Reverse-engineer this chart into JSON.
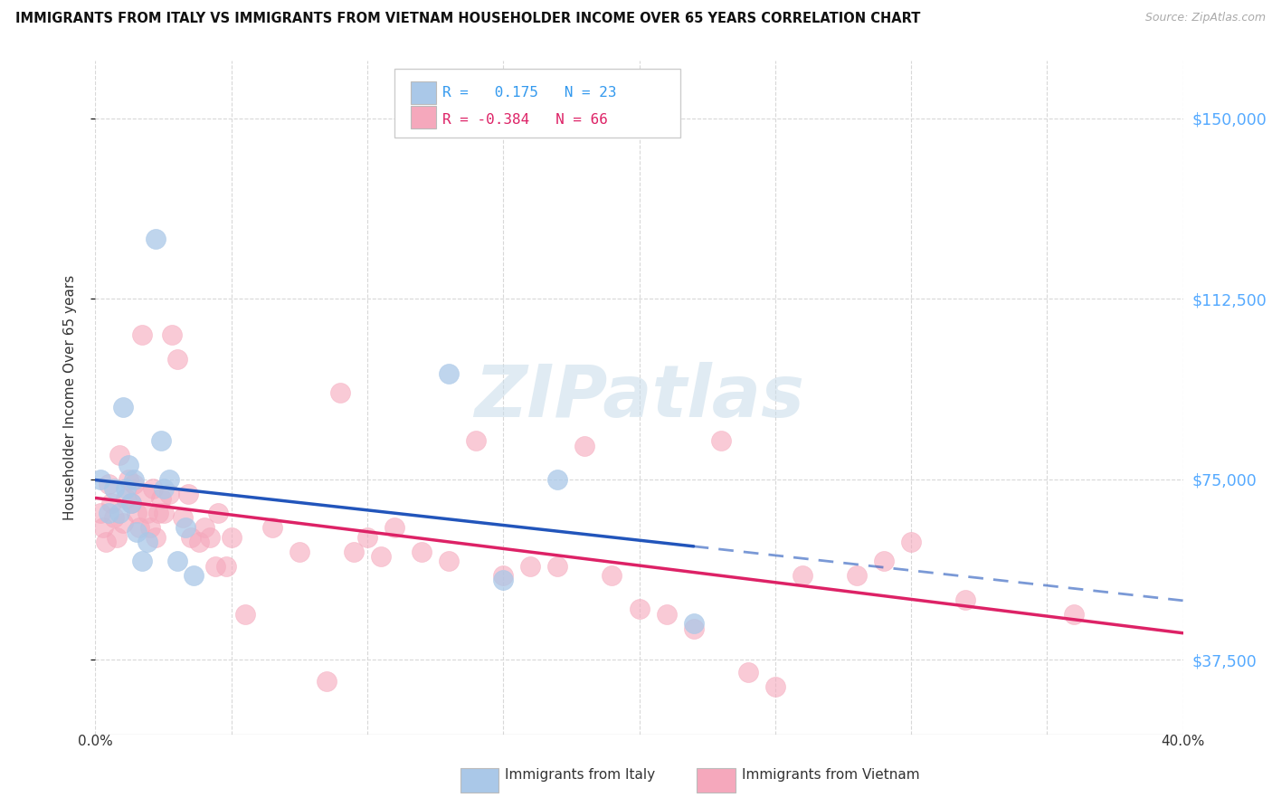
{
  "title": "IMMIGRANTS FROM ITALY VS IMMIGRANTS FROM VIETNAM HOUSEHOLDER INCOME OVER 65 YEARS CORRELATION CHART",
  "source": "Source: ZipAtlas.com",
  "ylabel": "Householder Income Over 65 years",
  "legend_italy": "Immigrants from Italy",
  "legend_vietnam": "Immigrants from Vietnam",
  "italy_R": "0.175",
  "italy_N": "23",
  "vietnam_R": "-0.384",
  "vietnam_N": "66",
  "ytick_vals": [
    37500,
    75000,
    112500,
    150000
  ],
  "ytick_labels": [
    "$37,500",
    "$75,000",
    "$112,500",
    "$150,000"
  ],
  "xlim": [
    0.0,
    0.4
  ],
  "ylim": [
    22000,
    162000
  ],
  "italy_face_color": "#aac8e8",
  "vietnam_face_color": "#f5a8bc",
  "italy_line_color": "#2255bb",
  "vietnam_line_color": "#dd2266",
  "watermark": "ZIPatlas",
  "background_color": "#ffffff",
  "grid_color": "#d8d8d8",
  "italy_scatter_x": [
    0.002,
    0.005,
    0.007,
    0.009,
    0.01,
    0.011,
    0.012,
    0.013,
    0.014,
    0.015,
    0.017,
    0.019,
    0.022,
    0.024,
    0.025,
    0.027,
    0.03,
    0.033,
    0.036,
    0.13,
    0.15,
    0.17,
    0.22
  ],
  "italy_scatter_y": [
    75000,
    68000,
    73000,
    68000,
    90000,
    73000,
    78000,
    70000,
    75000,
    64000,
    58000,
    62000,
    125000,
    83000,
    73000,
    75000,
    58000,
    65000,
    55000,
    97000,
    54000,
    75000,
    45000
  ],
  "vietnam_scatter_x": [
    0.002,
    0.003,
    0.004,
    0.005,
    0.006,
    0.007,
    0.008,
    0.009,
    0.01,
    0.011,
    0.012,
    0.013,
    0.014,
    0.015,
    0.016,
    0.017,
    0.018,
    0.019,
    0.02,
    0.021,
    0.022,
    0.023,
    0.024,
    0.025,
    0.027,
    0.028,
    0.03,
    0.032,
    0.034,
    0.035,
    0.038,
    0.04,
    0.042,
    0.044,
    0.045,
    0.048,
    0.05,
    0.055,
    0.065,
    0.075,
    0.085,
    0.09,
    0.095,
    0.1,
    0.105,
    0.11,
    0.12,
    0.13,
    0.14,
    0.15,
    0.16,
    0.17,
    0.18,
    0.19,
    0.2,
    0.21,
    0.22,
    0.23,
    0.24,
    0.25,
    0.26,
    0.28,
    0.29,
    0.3,
    0.32,
    0.36
  ],
  "vietnam_scatter_y": [
    68000,
    65000,
    62000,
    74000,
    70000,
    67000,
    63000,
    80000,
    66000,
    71000,
    75000,
    70000,
    74000,
    68000,
    65000,
    105000,
    72000,
    68000,
    65000,
    73000,
    63000,
    68000,
    71000,
    68000,
    72000,
    105000,
    100000,
    67000,
    72000,
    63000,
    62000,
    65000,
    63000,
    57000,
    68000,
    57000,
    63000,
    47000,
    65000,
    60000,
    33000,
    93000,
    60000,
    63000,
    59000,
    65000,
    60000,
    58000,
    83000,
    55000,
    57000,
    57000,
    82000,
    55000,
    48000,
    47000,
    44000,
    83000,
    35000,
    32000,
    55000,
    55000,
    58000,
    62000,
    50000,
    47000
  ]
}
